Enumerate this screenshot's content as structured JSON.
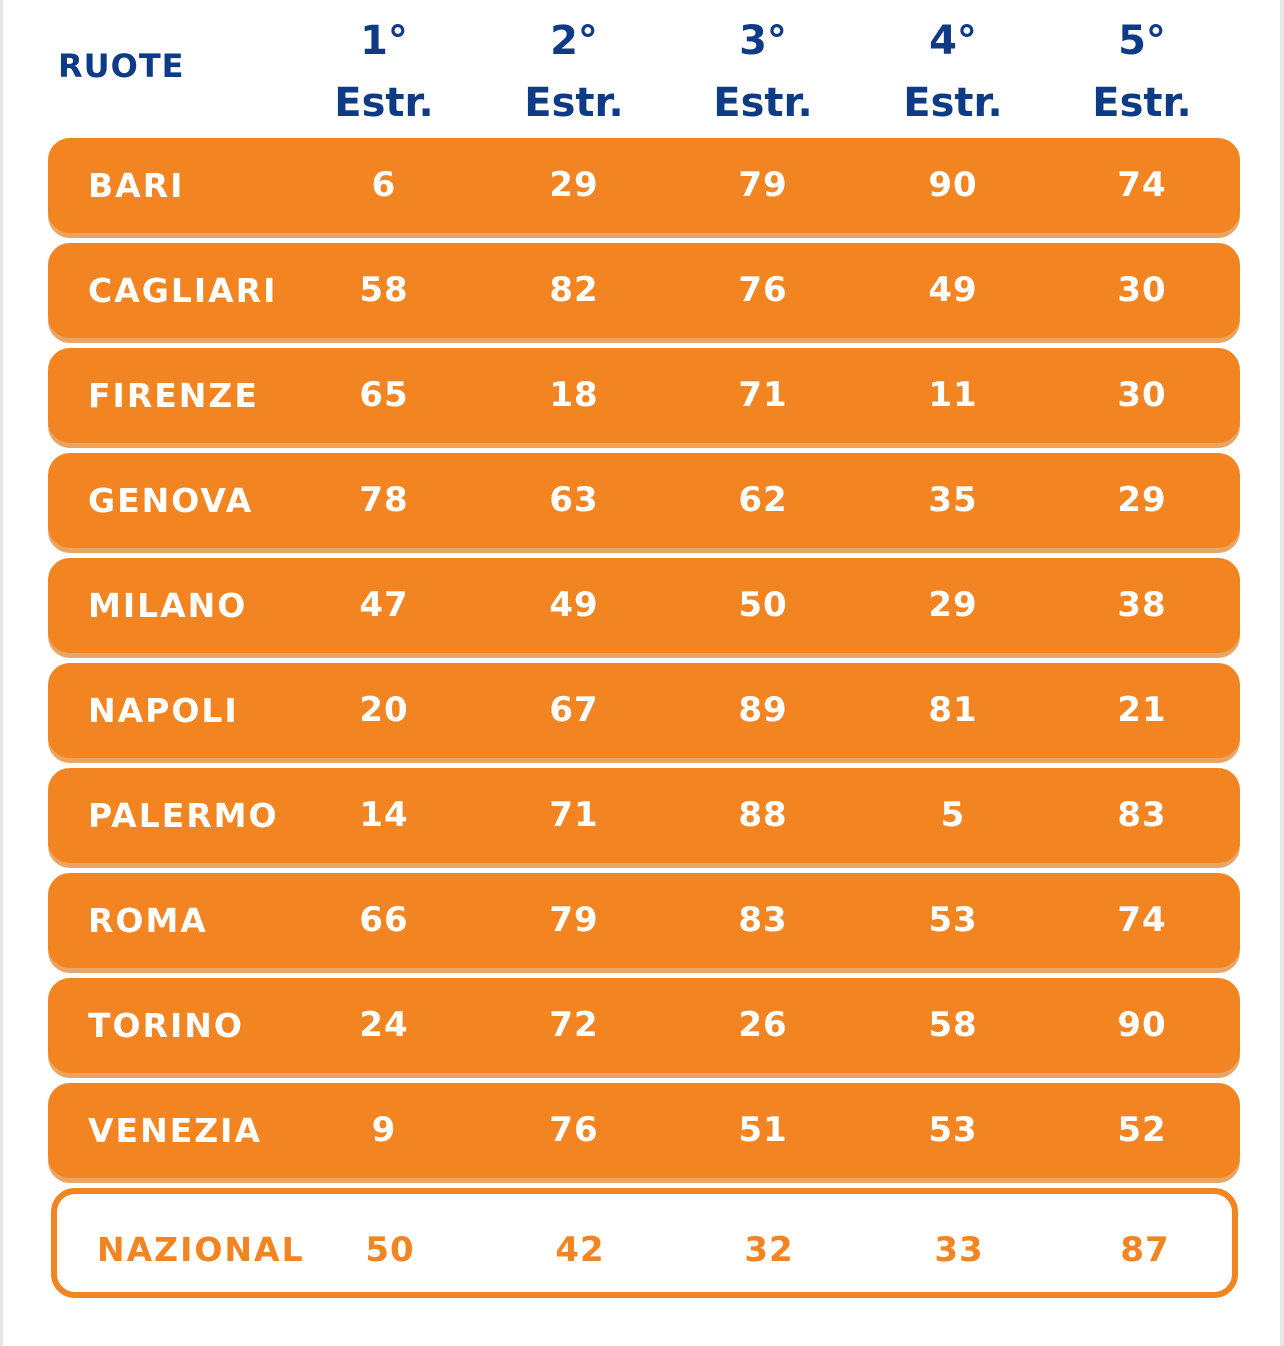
{
  "header": {
    "wheels_label": "RUOTE",
    "columns": [
      {
        "ordinal": "1°",
        "label": "Estr."
      },
      {
        "ordinal": "2°",
        "label": "Estr."
      },
      {
        "ordinal": "3°",
        "label": "Estr."
      },
      {
        "ordinal": "4°",
        "label": "Estr."
      },
      {
        "ordinal": "5°",
        "label": "Estr."
      }
    ]
  },
  "rows": [
    {
      "name": "BARI",
      "values": [
        "6",
        "29",
        "79",
        "90",
        "74"
      ]
    },
    {
      "name": "CAGLIARI",
      "values": [
        "58",
        "82",
        "76",
        "49",
        "30"
      ]
    },
    {
      "name": "FIRENZE",
      "values": [
        "65",
        "18",
        "71",
        "11",
        "30"
      ]
    },
    {
      "name": "GENOVA",
      "values": [
        "78",
        "63",
        "62",
        "35",
        "29"
      ]
    },
    {
      "name": "MILANO",
      "values": [
        "47",
        "49",
        "50",
        "29",
        "38"
      ]
    },
    {
      "name": "NAPOLI",
      "values": [
        "20",
        "67",
        "89",
        "81",
        "21"
      ]
    },
    {
      "name": "PALERMO",
      "values": [
        "14",
        "71",
        "88",
        "5",
        "83"
      ]
    },
    {
      "name": "ROMA",
      "values": [
        "66",
        "79",
        "83",
        "53",
        "74"
      ]
    },
    {
      "name": "TORINO",
      "values": [
        "24",
        "72",
        "26",
        "58",
        "90"
      ]
    },
    {
      "name": "VENEZIA",
      "values": [
        "9",
        "76",
        "51",
        "53",
        "52"
      ]
    }
  ],
  "national": {
    "name": "NAZIONAL",
    "values": [
      "50",
      "42",
      "32",
      "33",
      "87"
    ]
  },
  "colors": {
    "heading_blue": "#0d3b85",
    "row_orange": "#f28422",
    "row_text": "#ffffff",
    "national_border": "#f28422"
  }
}
